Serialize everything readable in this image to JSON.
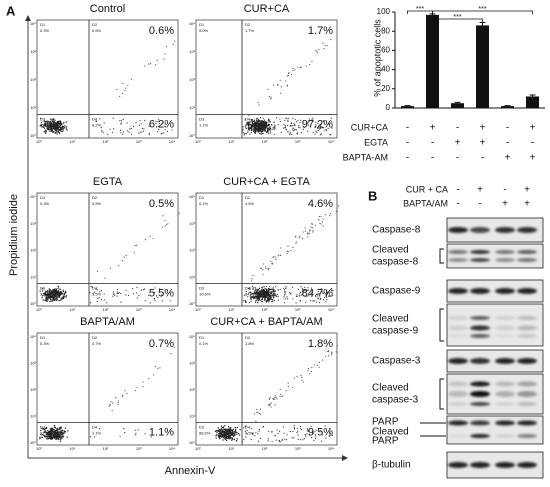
{
  "panel_a": {
    "label": "A",
    "y_axis": "Propidium iodide",
    "x_axis": "Annexin-V",
    "ticks": [
      "10⁰",
      "10¹",
      "10²",
      "10³",
      "10⁴"
    ],
    "quadrants": [
      "D1",
      "D2",
      "D3",
      "D4"
    ],
    "plots": [
      {
        "title": "Control",
        "q2": "0.6%",
        "q4": "6.2%",
        "small": [
          "0.3%",
          "0.6%",
          "93.0%",
          "6.2%"
        ]
      },
      {
        "title": "CUR+CA",
        "q2": "1.7%",
        "q4": "97.2%",
        "small": [
          "0.0%",
          "1.7%",
          "1.1%",
          "97.2%"
        ]
      },
      {
        "title": "EGTA",
        "q2": "0.5%",
        "q4": "5.5%",
        "small": [
          "0.3%",
          "0.5%",
          "93.7%",
          "5.5%"
        ]
      },
      {
        "title": "CUR+CA + EGTA",
        "q2": "4.6%",
        "q4": "84.7%",
        "small": [
          "0.1%",
          "4.6%",
          "10.6%",
          "84.7%"
        ]
      },
      {
        "title": "BAPTA/AM",
        "q2": "0.7%",
        "q4": "1.1%",
        "small": [
          "0.3%",
          "0.7%",
          "97.9%",
          "1.1%"
        ]
      },
      {
        "title": "CUR+CA + BAPTA/AM",
        "q2": "1.8%",
        "q4": "9.5%",
        "small": [
          "0.1%",
          "1.8%",
          "88.6%",
          "9.5%"
        ]
      }
    ]
  },
  "chart_data": {
    "type": "bar",
    "y_label": "% of apoptotic cells",
    "categories": [
      null,
      null,
      null,
      null,
      null,
      null
    ],
    "values": [
      2,
      97,
      5,
      86,
      2,
      12
    ],
    "errors": [
      0.5,
      1,
      0.8,
      3,
      0.5,
      1.5
    ],
    "color": "#111111",
    "ylim": [
      0,
      100
    ],
    "yticks": [
      0,
      20,
      40,
      60,
      80,
      100
    ],
    "annotations": [
      "***",
      "***",
      "***"
    ],
    "condition_rows": [
      {
        "name": "CUR+CA",
        "signs": [
          "-",
          "+",
          "-",
          "+",
          "-",
          "+"
        ]
      },
      {
        "name": "EGTA",
        "signs": [
          "-",
          "-",
          "+",
          "+",
          "-",
          "-"
        ]
      },
      {
        "name": "BAPTA-AM",
        "signs": [
          "-",
          "-",
          "-",
          "-",
          "+",
          "+"
        ]
      }
    ]
  },
  "panel_b": {
    "label": "B",
    "conditions": [
      {
        "name": "CUR + CA",
        "signs": [
          "-",
          "+",
          "-",
          "+"
        ]
      },
      {
        "name": "BAPTA/AM",
        "signs": [
          "-",
          "-",
          "+",
          "+"
        ]
      }
    ],
    "blots": [
      [
        "Caspase-8"
      ],
      [
        "Cleaved",
        "caspase-8"
      ],
      [
        "Caspase-9"
      ],
      [
        "Cleaved",
        "caspase-9"
      ],
      [
        "Caspase-3"
      ],
      [
        "Cleaved",
        "caspase-3"
      ],
      [
        "PARP",
        "Cleaved",
        "PARP"
      ],
      [
        "β-tubulin"
      ]
    ]
  }
}
